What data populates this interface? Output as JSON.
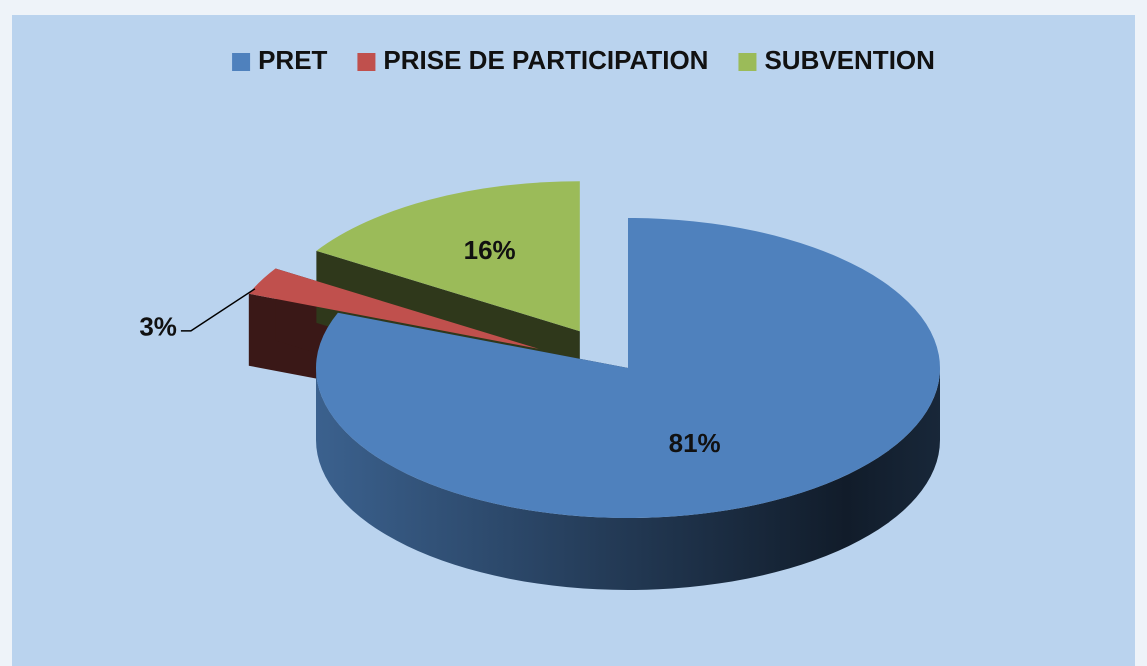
{
  "chart_data": {
    "type": "pie",
    "three_d": true,
    "categories": [
      "PRET",
      "PRISE DE PARTICIPATION",
      "SUBVENTION"
    ],
    "values": [
      81,
      3,
      16
    ],
    "value_labels": [
      "81%",
      "3%",
      "16%"
    ],
    "colors": [
      "#4f81bd",
      "#c0504d",
      "#9bbb59"
    ],
    "exploded": [
      false,
      true,
      true
    ],
    "legend": "top"
  }
}
